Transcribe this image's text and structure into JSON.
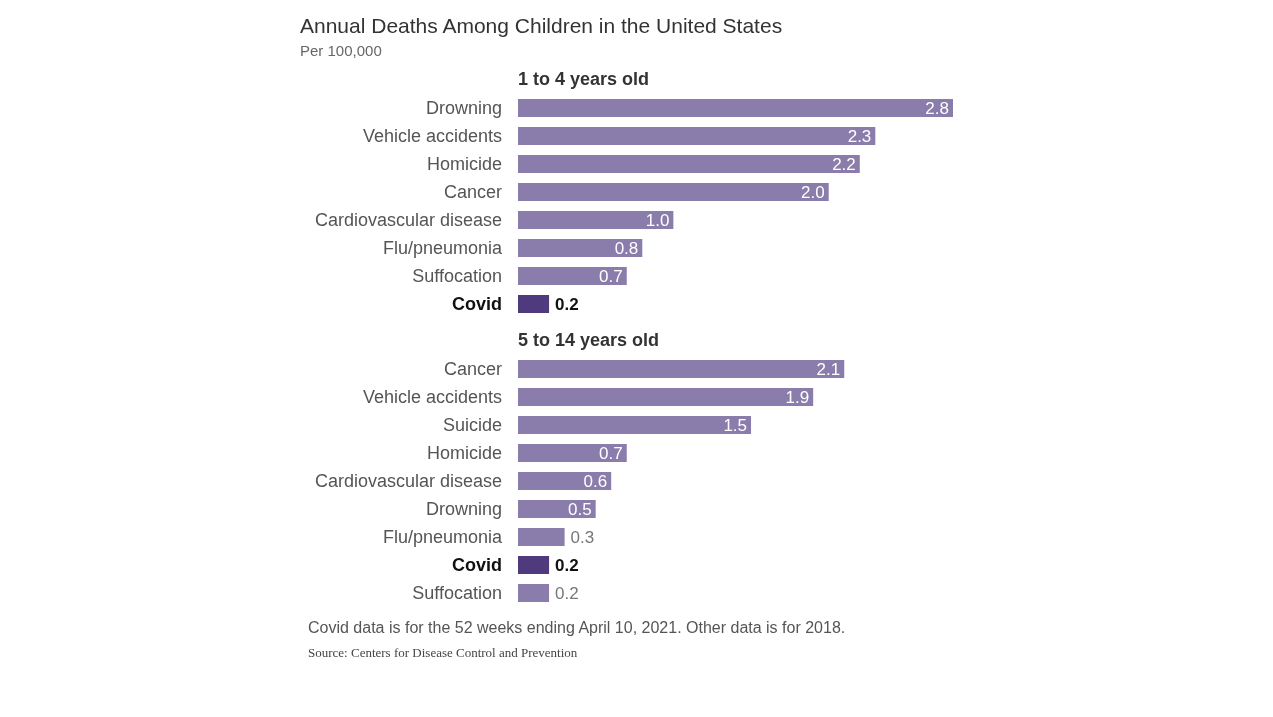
{
  "chart_data": [
    {
      "type": "other",
      "title": "Annual Deaths Among Children in the United States",
      "subtitle": "Per 100,000"
    },
    {
      "type": "bar",
      "orientation": "horizontal",
      "title": "1 to 4 years old",
      "categories": [
        "Drowning",
        "Vehicle accidents",
        "Homicide",
        "Cancer",
        "Cardiovascular disease",
        "Flu/pneumonia",
        "Suffocation",
        "Covid"
      ],
      "values": [
        2.8,
        2.3,
        2.2,
        2.0,
        1.0,
        0.8,
        0.7,
        0.2
      ],
      "value_labels": [
        "2.8",
        "2.3",
        "2.2",
        "2.0",
        "1.0",
        "0.8",
        "0.7",
        "0.2"
      ],
      "color": "#8a7dab",
      "colors": [
        "#8a7dab",
        "#8a7dab",
        "#8a7dab",
        "#8a7dab",
        "#8a7dab",
        "#8a7dab",
        "#8a7dab",
        "#4e3a7c"
      ]
    },
    {
      "type": "bar",
      "orientation": "horizontal",
      "title": "5 to 14 years old",
      "categories": [
        "Cancer",
        "Vehicle accidents",
        "Suicide",
        "Homicide",
        "Cardiovascular disease",
        "Drowning",
        "Flu/pneumonia",
        "Covid",
        "Suffocation"
      ],
      "values": [
        2.1,
        1.9,
        1.5,
        0.7,
        0.6,
        0.5,
        0.3,
        0.2,
        0.2
      ],
      "color": "#8a7dab",
      "colors": [
        "#8a7dab",
        "#8a7dab",
        "#8a7dab",
        "#8a7dab",
        "#8a7dab",
        "#8a7dab",
        "#8a7dab",
        "#4e3a7c",
        "#8a7dab"
      ],
      "value_labels": [
        "2.1",
        "1.9",
        "1.5",
        "0.7",
        "0.6",
        "0.5",
        "0.3",
        "0.2",
        "0.2"
      ],
      "annotations": [
        "Covid data is for the 52 weeks ending April 10, 2021. Other data is for 2018.",
        "Source: Centers for Disease Control and Prevention"
      ]
    }
  ]
}
